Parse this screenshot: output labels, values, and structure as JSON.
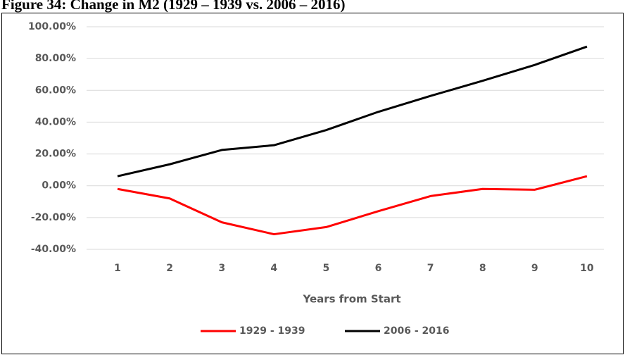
{
  "chart_data": {
    "type": "line",
    "title": "Figure 34: Change in M2 (1929 – 1939 vs. 2006 – 2016)",
    "x_label": "Years from Start",
    "categories": [
      "1",
      "2",
      "3",
      "4",
      "5",
      "6",
      "7",
      "8",
      "9",
      "10"
    ],
    "series": [
      {
        "name": "1929 - 1939",
        "color": "#ff0000",
        "values": [
          -2,
          -8,
          -23,
          -30.5,
          -26,
          -16,
          -6.5,
          -2,
          -2.5,
          6
        ]
      },
      {
        "name": "2006 - 2016",
        "color": "#000000",
        "values": [
          6,
          13.5,
          22.5,
          25.5,
          35,
          46.5,
          56.5,
          66,
          76,
          87.5
        ]
      }
    ],
    "ylim": [
      -40,
      100
    ],
    "yticks": [
      {
        "value": -40,
        "label": "-40.00%"
      },
      {
        "value": -20,
        "label": "-20.00%"
      },
      {
        "value": 0,
        "label": "0.00%"
      },
      {
        "value": 20,
        "label": "20.00%"
      },
      {
        "value": 40,
        "label": "40.00%"
      },
      {
        "value": 60,
        "label": "60.00%"
      },
      {
        "value": 80,
        "label": "80.00%"
      },
      {
        "value": 100,
        "label": "100.00%"
      }
    ],
    "grid": true,
    "legend": "bottom"
  }
}
